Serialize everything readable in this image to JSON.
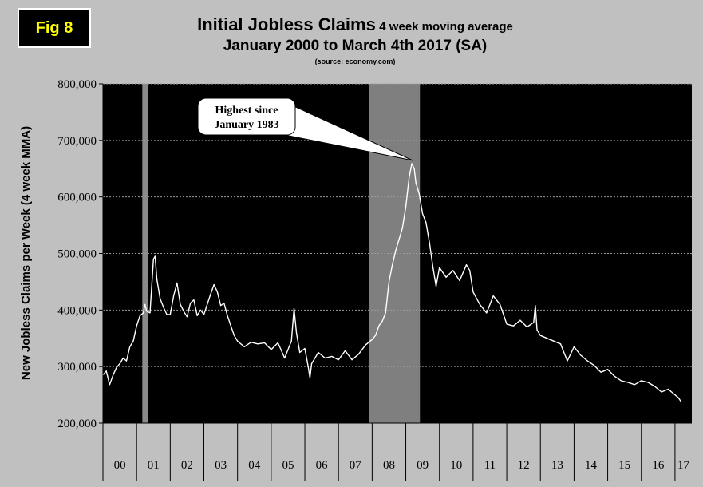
{
  "badge": {
    "label": "Fig 8"
  },
  "header": {
    "title": "Initial Jobless Claims",
    "subtitle_inline": "4 week moving average",
    "subtitle": "January 2000 to March 4th 2017 (SA)",
    "source": "(source: economy.com)"
  },
  "chart_data": {
    "type": "line",
    "title": "Initial Jobless Claims 4 week moving average",
    "subtitle": "January 2000 to March 4th 2017 (SA)",
    "ylabel": "New Jobless Claims per Week (4 week MMA)",
    "xlabel": "",
    "ylim": [
      200000,
      800000
    ],
    "yticks": [
      200000,
      300000,
      400000,
      500000,
      600000,
      700000,
      800000
    ],
    "ytick_labels": [
      "200,000",
      "300,000",
      "400,000",
      "500,000",
      "600,000",
      "700,000",
      "800,000"
    ],
    "xlim": [
      2000.0,
      2017.5
    ],
    "x_categories": [
      "00",
      "01",
      "02",
      "03",
      "04",
      "05",
      "06",
      "07",
      "08",
      "09",
      "10",
      "11",
      "12",
      "13",
      "14",
      "15",
      "16",
      "17"
    ],
    "grid": true,
    "recessions": [
      {
        "start": 2001.17,
        "end": 2001.33
      },
      {
        "start": 2007.92,
        "end": 2009.42
      }
    ],
    "annotation": {
      "lines": [
        "Highest since",
        "January 1983"
      ],
      "x": 2009.2,
      "y": 659000
    },
    "series": [
      {
        "x": [
          2000.0,
          2000.1,
          2000.2,
          2000.3,
          2000.4,
          2000.5,
          2000.6,
          2000.7,
          2000.8,
          2000.9,
          2001.0,
          2001.1,
          2001.2,
          2001.25,
          2001.3,
          2001.4,
          2001.5,
          2001.55,
          2001.6,
          2001.7,
          2001.8,
          2001.9,
          2002.0,
          2002.1,
          2002.2,
          2002.3,
          2002.4,
          2002.5,
          2002.6,
          2002.7,
          2002.8,
          2002.9,
          2003.0,
          2003.1,
          2003.2,
          2003.3,
          2003.4,
          2003.5,
          2003.6,
          2003.7,
          2003.8,
          2003.9,
          2004.0,
          2004.2,
          2004.4,
          2004.6,
          2004.8,
          2005.0,
          2005.2,
          2005.4,
          2005.6,
          2005.68,
          2005.75,
          2005.85,
          2006.0,
          2006.1,
          2006.15,
          2006.2,
          2006.4,
          2006.6,
          2006.8,
          2007.0,
          2007.2,
          2007.4,
          2007.6,
          2007.8,
          2008.0,
          2008.1,
          2008.2,
          2008.3,
          2008.4,
          2008.5,
          2008.6,
          2008.7,
          2008.8,
          2008.9,
          2009.0,
          2009.1,
          2009.18,
          2009.25,
          2009.3,
          2009.4,
          2009.5,
          2009.6,
          2009.7,
          2009.8,
          2009.9,
          2010.0,
          2010.2,
          2010.4,
          2010.6,
          2010.8,
          2010.9,
          2011.0,
          2011.2,
          2011.4,
          2011.6,
          2011.8,
          2012.0,
          2012.2,
          2012.4,
          2012.6,
          2012.8,
          2012.85,
          2012.9,
          2013.0,
          2013.2,
          2013.4,
          2013.6,
          2013.8,
          2014.0,
          2014.2,
          2014.4,
          2014.6,
          2014.8,
          2015.0,
          2015.2,
          2015.4,
          2015.6,
          2015.8,
          2016.0,
          2016.2,
          2016.4,
          2016.6,
          2016.8,
          2017.0,
          2017.1,
          2017.18
        ],
        "values": [
          285000,
          292000,
          268000,
          285000,
          298000,
          305000,
          315000,
          310000,
          335000,
          345000,
          372000,
          390000,
          395000,
          410000,
          398000,
          395000,
          490000,
          495000,
          455000,
          420000,
          405000,
          392000,
          392000,
          425000,
          448000,
          410000,
          398000,
          388000,
          412000,
          418000,
          390000,
          400000,
          392000,
          410000,
          428000,
          445000,
          432000,
          408000,
          412000,
          390000,
          372000,
          355000,
          345000,
          335000,
          343000,
          340000,
          342000,
          330000,
          342000,
          315000,
          345000,
          403000,
          360000,
          325000,
          332000,
          300000,
          280000,
          305000,
          325000,
          315000,
          318000,
          312000,
          328000,
          312000,
          322000,
          338000,
          348000,
          355000,
          372000,
          380000,
          395000,
          450000,
          480000,
          505000,
          525000,
          545000,
          582000,
          635000,
          659000,
          650000,
          625000,
          605000,
          570000,
          555000,
          520000,
          478000,
          442000,
          475000,
          458000,
          470000,
          452000,
          480000,
          470000,
          432000,
          410000,
          395000,
          425000,
          410000,
          375000,
          372000,
          382000,
          370000,
          378000,
          408000,
          365000,
          355000,
          350000,
          345000,
          340000,
          310000,
          335000,
          320000,
          310000,
          302000,
          290000,
          295000,
          283000,
          275000,
          272000,
          268000,
          275000,
          272000,
          265000,
          255000,
          260000,
          250000,
          245000,
          238000
        ]
      }
    ]
  }
}
